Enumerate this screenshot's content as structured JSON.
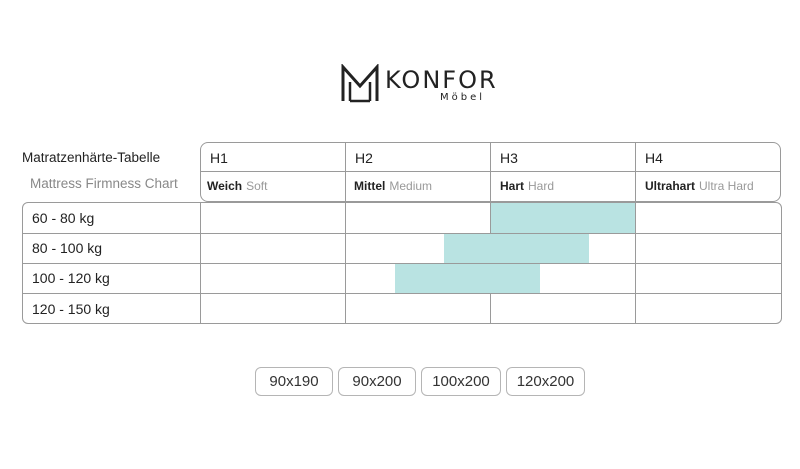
{
  "brand": {
    "name": "KONFOR",
    "sub": "Möbel"
  },
  "table": {
    "title_de": "Matratzenhärte-Tabelle",
    "title_en": "Mattress Firmness Chart",
    "levels": [
      {
        "code": "H1",
        "name_de": "Weich",
        "name_en": "Soft"
      },
      {
        "code": "H2",
        "name_de": "Mittel",
        "name_en": "Medium"
      },
      {
        "code": "H3",
        "name_de": "Hart",
        "name_en": "Hard"
      },
      {
        "code": "H4",
        "name_de": "Ultrahart",
        "name_en": "Ultra Hard"
      }
    ],
    "rows": [
      {
        "weight": "60 - 80 kg"
      },
      {
        "weight": "80 - 100 kg"
      },
      {
        "weight": "100 - 120 kg"
      },
      {
        "weight": "120 - 150 kg"
      }
    ]
  },
  "colors": {
    "highlight": "#b9e3e2",
    "border": "#9a9a9a"
  },
  "sizes": [
    "90x190",
    "90x200",
    "100x200",
    "120x200"
  ]
}
